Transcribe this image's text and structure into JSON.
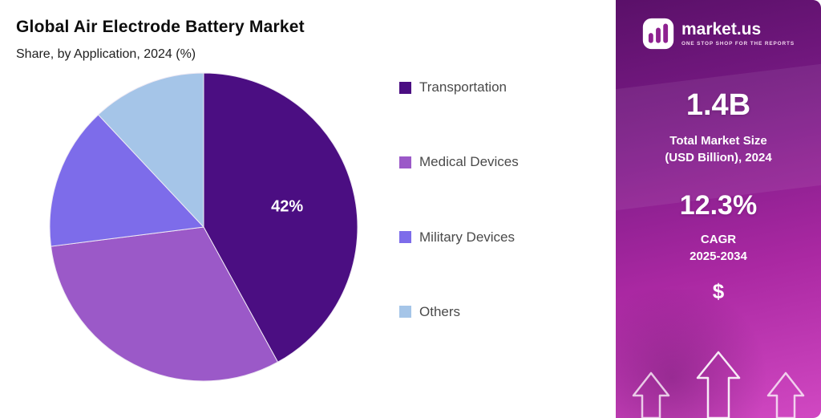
{
  "header": {
    "title": "Global Air Electrode Battery Market",
    "subtitle": "Share, by Application, 2024 (%)"
  },
  "chart_data": {
    "type": "pie",
    "title": "Global Air Electrode Battery Market",
    "subtitle": "Share, by Application, 2024 (%)",
    "unit": "%",
    "categories": [
      "Transportation",
      "Medical Devices",
      "Military Devices",
      "Others"
    ],
    "values": [
      42,
      31,
      15,
      12
    ],
    "colors": [
      "#4b0e82",
      "#9b59c8",
      "#7d6cea",
      "#a5c5e8"
    ],
    "shown_label": {
      "text": "42%",
      "slice_index": 0
    },
    "start_angle": "top",
    "direction": "clockwise",
    "legend_position": "right"
  },
  "sidebar": {
    "logo_text": "market.us",
    "logo_tagline": "ONE STOP SHOP FOR THE REPORTS",
    "stat1_value": "1.4B",
    "stat1_label": "Total Market Size\n(USD Billion), 2024",
    "stat2_value": "12.3%",
    "stat2_label": "CAGR\n2025-2034",
    "currency_symbol": "$"
  }
}
